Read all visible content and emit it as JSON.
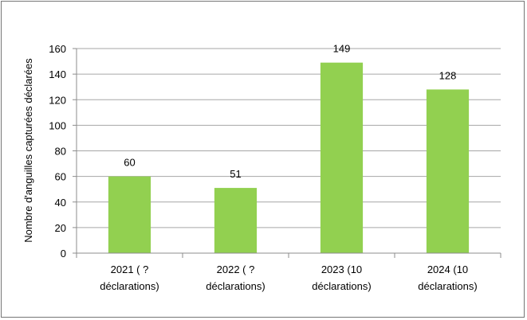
{
  "chart_data": {
    "type": "bar",
    "categories": [
      [
        "2021 ( ?",
        "déclarations)"
      ],
      [
        "2022 ( ?",
        "déclarations)"
      ],
      [
        "2023 (10",
        "déclarations)"
      ],
      [
        "2024 (10",
        "déclarations)"
      ]
    ],
    "values": [
      60,
      51,
      149,
      128
    ],
    "data_labels": [
      "60",
      "51",
      "149",
      "128"
    ],
    "title": "",
    "xlabel": "",
    "ylabel": "Nombre d'anguilles capturées déclarées",
    "ylim": [
      0,
      160
    ],
    "yticks": [
      0,
      20,
      40,
      60,
      80,
      100,
      120,
      140,
      160
    ],
    "grid": true,
    "legend": "none",
    "bar_color": "#92D050",
    "grid_color": "#A6A6A6",
    "axis_color": "#8C8C8C",
    "frame_color": "#767676"
  }
}
